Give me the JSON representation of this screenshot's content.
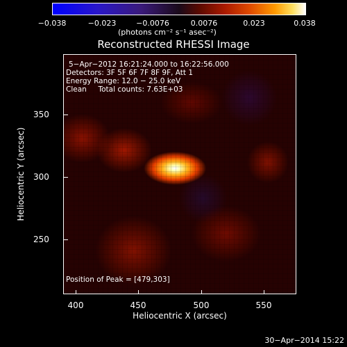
{
  "colorbar": {
    "ticks": [
      "−0.038",
      "−0.023",
      "−0.0076",
      "0.0076",
      "0.023",
      "0.038"
    ],
    "unit": "(photons cm⁻² s⁻¹ asec⁻²)"
  },
  "plot": {
    "title": "Reconstructed RHESSI Image",
    "info_lines": [
      "5−Apr−2012 16:21:24.000 to 16:22:56.000",
      "Detectors: 3F 5F 6F 7F 8F 9F, Att 1",
      "Energy Range: 12.0 − 25.0 keV",
      "Clean     Total counts: 7.63E+03"
    ],
    "peak_text": "Position of Peak = [479,303]",
    "x_ticks": [
      "400",
      "450",
      "500",
      "550"
    ],
    "y_ticks": [
      "350",
      "300",
      "250"
    ],
    "xlabel": "Heliocentric X (arcsec)",
    "ylabel": "Heliocentric Y (arcsec)"
  },
  "footer": {
    "timestamp": "30−Apr−2014 15:22"
  }
}
